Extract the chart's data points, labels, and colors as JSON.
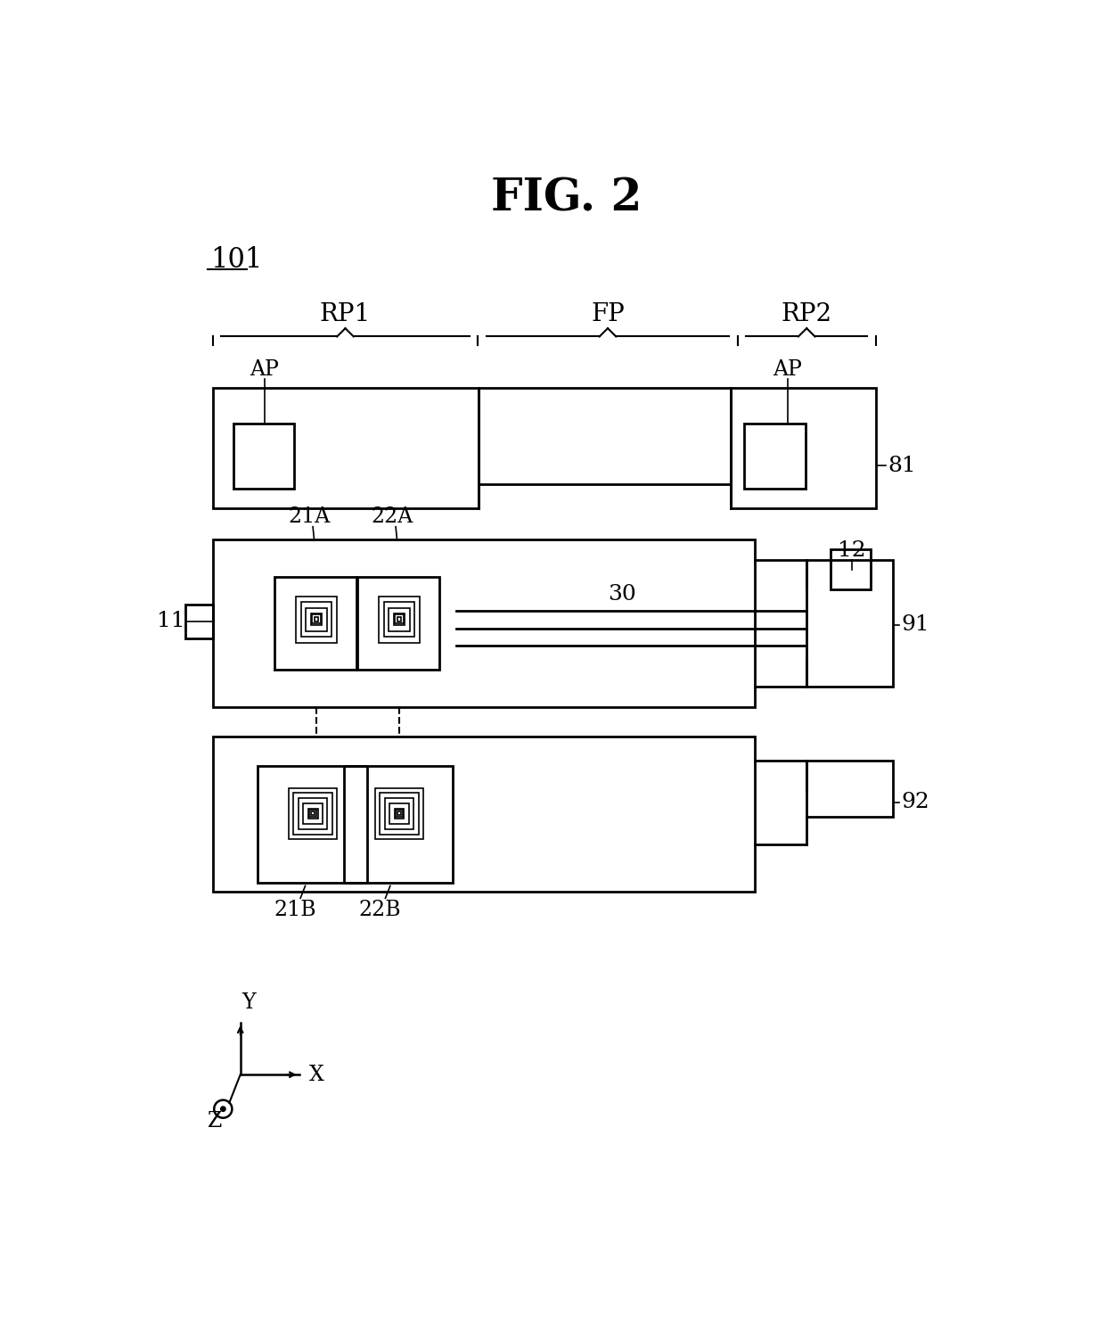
{
  "title": "FIG. 2",
  "label_101": "101",
  "label_RP1": "RP1",
  "label_FP": "FP",
  "label_RP2": "RP2",
  "label_AP_left": "AP",
  "label_AP_right": "AP",
  "label_81": "81",
  "label_11": "11",
  "label_12": "12",
  "label_21A": "21A",
  "label_22A": "22A",
  "label_21B": "21B",
  "label_22B": "22B",
  "label_30": "30",
  "label_91": "91",
  "label_92": "92",
  "label_Y": "Y",
  "label_X": "X",
  "label_Z": "Z",
  "bg_color": "#ffffff",
  "line_color": "#000000"
}
